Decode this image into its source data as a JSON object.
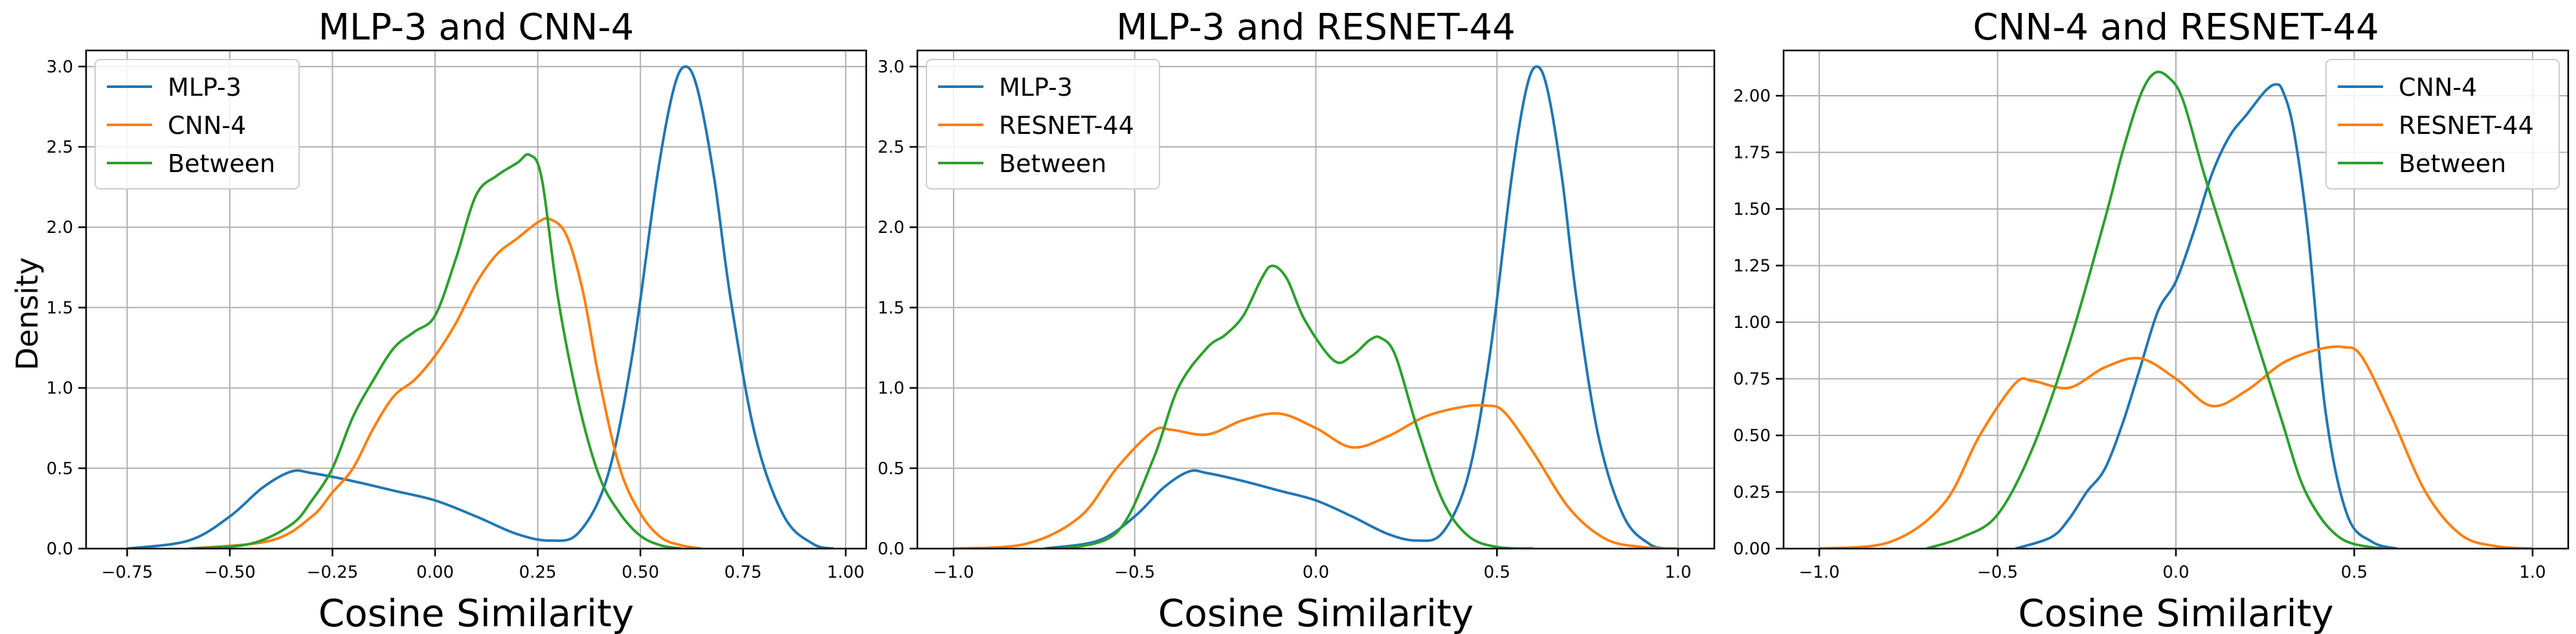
{
  "figure": {
    "shared_ylabel": "Density",
    "xlabel": "Cosine Similarity"
  },
  "colors": {
    "blue": "#1f77b4",
    "orange": "#ff7f0e",
    "green": "#2ca02c",
    "grid": "#b0b0b0"
  },
  "chart_data": [
    {
      "type": "line",
      "title": "MLP-3 and CNN-4",
      "xlabel": "Cosine Similarity",
      "ylabel": "Density",
      "xlim": [
        -0.85,
        1.05
      ],
      "ylim": [
        0,
        3.1
      ],
      "xticks": [
        -0.75,
        -0.5,
        -0.25,
        0.0,
        0.25,
        0.5,
        0.75,
        1.0
      ],
      "xtick_labels": [
        "−0.75",
        "−0.50",
        "−0.25",
        "0.00",
        "0.25",
        "0.50",
        "0.75",
        "1.00"
      ],
      "yticks": [
        0,
        0.5,
        1.0,
        1.5,
        2.0,
        2.5,
        3.0
      ],
      "ytick_labels": [
        "0.0",
        "0.5",
        "1.0",
        "1.5",
        "2.0",
        "2.5",
        "3.0"
      ],
      "grid": true,
      "legend_position": "top-left",
      "series": [
        {
          "name": "MLP-3",
          "color": "#1f77b4",
          "x": [
            -0.75,
            -0.6,
            -0.5,
            -0.42,
            -0.35,
            -0.3,
            -0.2,
            -0.1,
            0.0,
            0.1,
            0.2,
            0.28,
            0.35,
            0.42,
            0.48,
            0.54,
            0.58,
            0.61,
            0.64,
            0.68,
            0.72,
            0.78,
            0.85,
            0.92,
            0.97
          ],
          "y": [
            0.0,
            0.05,
            0.2,
            0.38,
            0.48,
            0.47,
            0.42,
            0.36,
            0.3,
            0.2,
            0.09,
            0.05,
            0.1,
            0.45,
            1.2,
            2.3,
            2.85,
            3.0,
            2.85,
            2.3,
            1.55,
            0.7,
            0.2,
            0.03,
            0.0
          ]
        },
        {
          "name": "CNN-4",
          "color": "#ff7f0e",
          "x": [
            -0.6,
            -0.4,
            -0.3,
            -0.25,
            -0.2,
            -0.15,
            -0.1,
            -0.05,
            0.0,
            0.05,
            0.1,
            0.15,
            0.2,
            0.25,
            0.28,
            0.32,
            0.36,
            0.4,
            0.45,
            0.5,
            0.55,
            0.6,
            0.65
          ],
          "y": [
            0.0,
            0.05,
            0.2,
            0.35,
            0.5,
            0.75,
            0.95,
            1.05,
            1.2,
            1.4,
            1.65,
            1.83,
            1.93,
            2.03,
            2.05,
            1.95,
            1.6,
            1.05,
            0.5,
            0.22,
            0.07,
            0.02,
            0.0
          ]
        },
        {
          "name": "Between",
          "color": "#2ca02c",
          "x": [
            -0.6,
            -0.45,
            -0.35,
            -0.3,
            -0.25,
            -0.2,
            -0.15,
            -0.1,
            -0.05,
            0.0,
            0.05,
            0.1,
            0.15,
            0.2,
            0.23,
            0.26,
            0.3,
            0.35,
            0.4,
            0.45,
            0.5,
            0.55,
            0.6
          ],
          "y": [
            0.0,
            0.03,
            0.15,
            0.3,
            0.5,
            0.82,
            1.05,
            1.25,
            1.35,
            1.45,
            1.8,
            2.2,
            2.32,
            2.4,
            2.45,
            2.3,
            1.55,
            0.9,
            0.45,
            0.22,
            0.08,
            0.02,
            0.0
          ]
        }
      ]
    },
    {
      "type": "line",
      "title": "MLP-3 and RESNET-44",
      "xlabel": "Cosine Similarity",
      "ylabel": "",
      "xlim": [
        -1.1,
        1.1
      ],
      "ylim": [
        0,
        3.1
      ],
      "xticks": [
        -1.0,
        -0.5,
        0.0,
        0.5,
        1.0
      ],
      "xtick_labels": [
        "−1.0",
        "−0.5",
        "0.0",
        "0.5",
        "1.0"
      ],
      "yticks": [
        0,
        0.5,
        1.0,
        1.5,
        2.0,
        2.5,
        3.0
      ],
      "ytick_labels": [
        "0.0",
        "0.5",
        "1.0",
        "1.5",
        "2.0",
        "2.5",
        "3.0"
      ],
      "grid": true,
      "legend_position": "top-left",
      "series": [
        {
          "name": "MLP-3",
          "color": "#1f77b4",
          "x": [
            -0.75,
            -0.6,
            -0.5,
            -0.42,
            -0.35,
            -0.3,
            -0.2,
            -0.1,
            0.0,
            0.1,
            0.2,
            0.28,
            0.35,
            0.42,
            0.48,
            0.54,
            0.58,
            0.61,
            0.64,
            0.68,
            0.72,
            0.78,
            0.85,
            0.92,
            0.97
          ],
          "y": [
            0.0,
            0.05,
            0.2,
            0.38,
            0.48,
            0.47,
            0.42,
            0.36,
            0.3,
            0.2,
            0.09,
            0.05,
            0.1,
            0.45,
            1.2,
            2.3,
            2.85,
            3.0,
            2.85,
            2.3,
            1.55,
            0.7,
            0.2,
            0.03,
            0.0
          ]
        },
        {
          "name": "RESNET-44",
          "color": "#ff7f0e",
          "x": [
            -1.0,
            -0.8,
            -0.65,
            -0.55,
            -0.45,
            -0.4,
            -0.3,
            -0.2,
            -0.1,
            0.0,
            0.1,
            0.2,
            0.3,
            0.4,
            0.47,
            0.52,
            0.6,
            0.7,
            0.8,
            0.9,
            1.0
          ],
          "y": [
            0.0,
            0.03,
            0.2,
            0.5,
            0.73,
            0.74,
            0.71,
            0.8,
            0.84,
            0.75,
            0.63,
            0.7,
            0.82,
            0.88,
            0.89,
            0.85,
            0.6,
            0.25,
            0.06,
            0.01,
            0.0
          ]
        },
        {
          "name": "Between",
          "color": "#2ca02c",
          "x": [
            -0.7,
            -0.55,
            -0.45,
            -0.38,
            -0.3,
            -0.25,
            -0.2,
            -0.15,
            -0.12,
            -0.08,
            -0.03,
            0.05,
            0.1,
            0.15,
            0.18,
            0.22,
            0.28,
            0.35,
            0.42,
            0.5,
            0.6
          ],
          "y": [
            0.0,
            0.1,
            0.55,
            1.0,
            1.25,
            1.33,
            1.45,
            1.68,
            1.76,
            1.68,
            1.42,
            1.17,
            1.2,
            1.3,
            1.31,
            1.2,
            0.75,
            0.3,
            0.08,
            0.01,
            0.0
          ]
        }
      ]
    },
    {
      "type": "line",
      "title": "CNN-4 and RESNET-44",
      "xlabel": "Cosine Similarity",
      "ylabel": "",
      "xlim": [
        -1.1,
        1.1
      ],
      "ylim": [
        0,
        2.2
      ],
      "xticks": [
        -1.0,
        -0.5,
        0.0,
        0.5,
        1.0
      ],
      "xtick_labels": [
        "−1.0",
        "−0.5",
        "0.0",
        "0.5",
        "1.0"
      ],
      "yticks": [
        0,
        0.25,
        0.5,
        0.75,
        1.0,
        1.25,
        1.5,
        1.75,
        2.0
      ],
      "ytick_labels": [
        "0.00",
        "0.25",
        "0.50",
        "0.75",
        "1.00",
        "1.25",
        "1.50",
        "1.75",
        "2.00"
      ],
      "grid": true,
      "legend_position": "top-right",
      "series": [
        {
          "name": "CNN-4",
          "color": "#1f77b4",
          "x": [
            -0.45,
            -0.35,
            -0.3,
            -0.25,
            -0.2,
            -0.15,
            -0.1,
            -0.05,
            0.0,
            0.05,
            0.1,
            0.15,
            0.2,
            0.25,
            0.28,
            0.3,
            0.33,
            0.37,
            0.42,
            0.48,
            0.55,
            0.62
          ],
          "y": [
            0.0,
            0.05,
            0.13,
            0.25,
            0.35,
            0.55,
            0.8,
            1.05,
            1.18,
            1.4,
            1.65,
            1.82,
            1.92,
            2.02,
            2.05,
            2.02,
            1.85,
            1.4,
            0.6,
            0.15,
            0.03,
            0.0
          ]
        },
        {
          "name": "RESNET-44",
          "color": "#ff7f0e",
          "x": [
            -1.0,
            -0.8,
            -0.65,
            -0.55,
            -0.45,
            -0.4,
            -0.3,
            -0.2,
            -0.1,
            0.0,
            0.1,
            0.2,
            0.3,
            0.4,
            0.47,
            0.52,
            0.6,
            0.7,
            0.8,
            0.9,
            1.0
          ],
          "y": [
            0.0,
            0.03,
            0.2,
            0.5,
            0.73,
            0.74,
            0.71,
            0.8,
            0.84,
            0.75,
            0.63,
            0.7,
            0.82,
            0.88,
            0.89,
            0.85,
            0.6,
            0.25,
            0.06,
            0.01,
            0.0
          ]
        },
        {
          "name": "Between",
          "color": "#2ca02c",
          "x": [
            -0.7,
            -0.6,
            -0.5,
            -0.4,
            -0.3,
            -0.2,
            -0.15,
            -0.1,
            -0.06,
            -0.02,
            0.02,
            0.08,
            0.15,
            0.2,
            0.25,
            0.3,
            0.35,
            0.4,
            0.45,
            0.5,
            0.58
          ],
          "y": [
            0.0,
            0.05,
            0.15,
            0.45,
            0.9,
            1.45,
            1.75,
            2.0,
            2.1,
            2.08,
            1.98,
            1.65,
            1.3,
            1.05,
            0.8,
            0.55,
            0.3,
            0.15,
            0.06,
            0.02,
            0.0
          ]
        }
      ]
    }
  ]
}
